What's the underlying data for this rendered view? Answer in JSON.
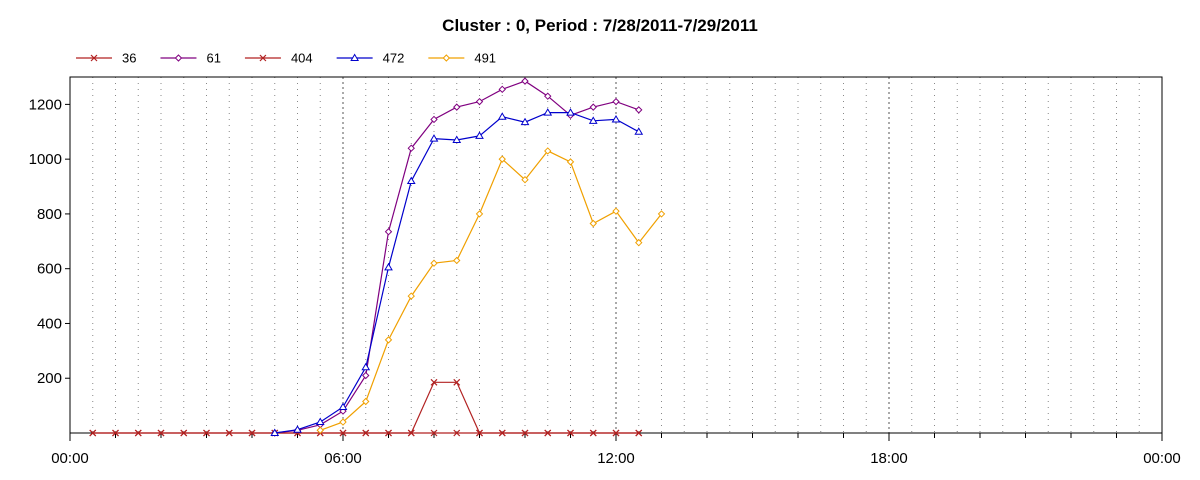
{
  "chart_data": {
    "type": "line",
    "title": "Cluster : 0, Period : 7/28/2011-7/29/2011",
    "xlabel": "",
    "ylabel": "",
    "x_unit": "hours",
    "xlim": [
      0,
      24
    ],
    "ylim": [
      0,
      1300
    ],
    "x_ticks": [
      {
        "value": 0,
        "label": "00:00"
      },
      {
        "value": 6,
        "label": "06:00"
      },
      {
        "value": 12,
        "label": "12:00"
      },
      {
        "value": 18,
        "label": "18:00"
      },
      {
        "value": 24,
        "label": "00:00"
      }
    ],
    "y_ticks": [
      {
        "value": 200,
        "label": "200"
      },
      {
        "value": 400,
        "label": "400"
      },
      {
        "value": 600,
        "label": "600"
      },
      {
        "value": 800,
        "label": "800"
      },
      {
        "value": 1000,
        "label": "1000"
      },
      {
        "value": 1200,
        "label": "1200"
      }
    ],
    "grid": "vertical dotted, every 30 minutes",
    "legend_position": "top-left",
    "series": [
      {
        "name": "36",
        "color": "#b22222",
        "marker": "x",
        "points": [
          [
            0.5,
            0
          ],
          [
            1,
            0
          ],
          [
            1.5,
            0
          ],
          [
            2,
            0
          ],
          [
            2.5,
            0
          ],
          [
            3,
            0
          ],
          [
            3.5,
            0
          ],
          [
            4,
            0
          ],
          [
            4.5,
            0
          ],
          [
            5,
            0
          ],
          [
            5.5,
            0
          ],
          [
            6,
            0
          ],
          [
            6.5,
            0
          ],
          [
            7,
            0
          ],
          [
            7.5,
            0
          ],
          [
            8,
            185
          ],
          [
            8.5,
            185
          ],
          [
            9,
            0
          ],
          [
            9.5,
            0
          ],
          [
            10,
            0
          ],
          [
            10.5,
            0
          ],
          [
            11,
            0
          ],
          [
            11.5,
            0
          ],
          [
            12,
            0
          ],
          [
            12.5,
            0
          ]
        ]
      },
      {
        "name": "61",
        "color": "#800080",
        "marker": "diamond",
        "points": [
          [
            4.5,
            0
          ],
          [
            5,
            10
          ],
          [
            5.5,
            30
          ],
          [
            6,
            80
          ],
          [
            6.5,
            210
          ],
          [
            7,
            735
          ],
          [
            7.5,
            1040
          ],
          [
            8,
            1145
          ],
          [
            8.5,
            1190
          ],
          [
            9,
            1210
          ],
          [
            9.5,
            1255
          ],
          [
            10,
            1285
          ],
          [
            10.5,
            1230
          ],
          [
            11,
            1160
          ],
          [
            11.5,
            1190
          ],
          [
            12,
            1210
          ],
          [
            12.5,
            1180
          ]
        ]
      },
      {
        "name": "404",
        "color": "#b22222",
        "marker": "x",
        "points": [
          [
            0.5,
            0
          ],
          [
            1,
            0
          ],
          [
            1.5,
            0
          ],
          [
            2,
            0
          ],
          [
            2.5,
            0
          ],
          [
            3,
            0
          ],
          [
            3.5,
            0
          ],
          [
            4,
            0
          ],
          [
            4.5,
            0
          ],
          [
            5,
            0
          ],
          [
            5.5,
            0
          ],
          [
            6,
            0
          ],
          [
            6.5,
            0
          ],
          [
            7,
            0
          ],
          [
            7.5,
            0
          ],
          [
            8,
            0
          ],
          [
            8.5,
            0
          ],
          [
            9,
            0
          ],
          [
            9.5,
            0
          ],
          [
            10,
            0
          ],
          [
            10.5,
            0
          ],
          [
            11,
            0
          ],
          [
            11.5,
            0
          ],
          [
            12,
            0
          ],
          [
            12.5,
            0
          ]
        ]
      },
      {
        "name": "472",
        "color": "#0000cc",
        "marker": "triangle",
        "points": [
          [
            4.5,
            0
          ],
          [
            5,
            12
          ],
          [
            5.5,
            40
          ],
          [
            6,
            95
          ],
          [
            6.5,
            240
          ],
          [
            7,
            605
          ],
          [
            7.5,
            920
          ],
          [
            8,
            1075
          ],
          [
            8.5,
            1070
          ],
          [
            9,
            1085
          ],
          [
            9.5,
            1155
          ],
          [
            10,
            1135
          ],
          [
            10.5,
            1170
          ],
          [
            11,
            1170
          ],
          [
            11.5,
            1140
          ],
          [
            12,
            1145
          ],
          [
            12.5,
            1100
          ]
        ]
      },
      {
        "name": "491",
        "color": "#f0a000",
        "marker": "diamond",
        "points": [
          [
            5.5,
            10
          ],
          [
            6,
            40
          ],
          [
            6.5,
            115
          ],
          [
            7,
            340
          ],
          [
            7.5,
            500
          ],
          [
            8,
            620
          ],
          [
            8.5,
            630
          ],
          [
            9,
            800
          ],
          [
            9.5,
            1000
          ],
          [
            10,
            925
          ],
          [
            10.5,
            1030
          ],
          [
            11,
            990
          ],
          [
            11.5,
            765
          ],
          [
            12,
            810
          ],
          [
            12.5,
            695
          ],
          [
            13,
            800
          ]
        ]
      }
    ]
  }
}
